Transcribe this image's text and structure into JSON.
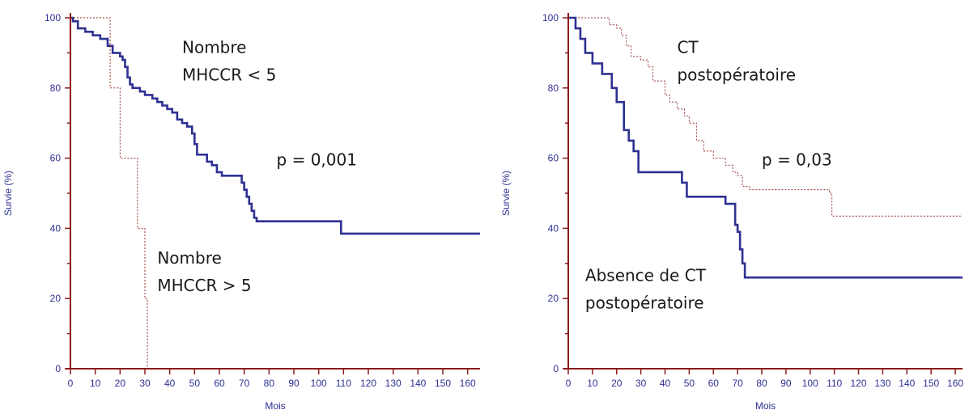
{
  "chart_data": [
    {
      "type": "line",
      "subtype": "kaplan-meier",
      "title": "",
      "xlabel": "Mois",
      "ylabel": "Survie (%)",
      "xlim": [
        0,
        165
      ],
      "ylim": [
        0,
        100
      ],
      "xticks": [
        0,
        10,
        20,
        30,
        40,
        50,
        60,
        70,
        80,
        90,
        100,
        110,
        120,
        130,
        140,
        150,
        160
      ],
      "yticks": [
        0,
        20,
        40,
        60,
        80,
        100
      ],
      "grid": false,
      "series": [
        {
          "name": "Nombre MHCCR < 5",
          "color": "#2e3192",
          "style": "solid",
          "x": [
            0,
            1,
            3,
            6,
            9,
            12,
            15,
            17,
            20,
            21,
            22,
            23,
            24,
            25,
            28,
            30,
            33,
            35,
            37,
            39,
            41,
            43,
            45,
            47,
            49,
            50,
            51,
            55,
            57,
            59,
            61,
            64,
            66,
            69,
            70,
            71,
            72,
            73,
            74,
            75,
            108,
            109,
            165
          ],
          "y": [
            100,
            99,
            97,
            96,
            95,
            94,
            92,
            90,
            89,
            88,
            86,
            83,
            81,
            80,
            79,
            78,
            77,
            76,
            75,
            74,
            73,
            71,
            70,
            69,
            67,
            64,
            61,
            59,
            58,
            56,
            55,
            55,
            55,
            53,
            51,
            49,
            47,
            45,
            43,
            42,
            42,
            38.5,
            38.5
          ]
        },
        {
          "name": "Nombre MHCCR > 5",
          "color": "#9b2d2d",
          "style": "dotted",
          "x": [
            0,
            15,
            16,
            19,
            20,
            26,
            27,
            30,
            31
          ],
          "y": [
            100,
            100,
            80,
            80,
            60,
            60,
            40,
            20,
            0
          ]
        }
      ],
      "annotations": [
        {
          "lines": [
            "Nombre",
            "MHCCR < 5"
          ],
          "x": 45,
          "y": 90
        },
        {
          "lines": [
            "p = 0,001"
          ],
          "x": 83,
          "y": 58
        },
        {
          "lines": [
            "Nombre",
            "MHCCR > 5"
          ],
          "x": 35,
          "y": 30
        }
      ]
    },
    {
      "type": "line",
      "subtype": "kaplan-meier",
      "title": "",
      "xlabel": "Mois",
      "ylabel": "Survie (%)",
      "xlim": [
        0,
        163
      ],
      "ylim": [
        0,
        100
      ],
      "xticks": [
        0,
        10,
        20,
        30,
        40,
        50,
        60,
        70,
        80,
        90,
        100,
        110,
        120,
        130,
        140,
        150,
        160
      ],
      "yticks": [
        0,
        20,
        40,
        60,
        80,
        100
      ],
      "grid": false,
      "series": [
        {
          "name": "CT postopératoire",
          "color": "#9b2d2d",
          "style": "dotted",
          "x": [
            0,
            15,
            17,
            20,
            22,
            24,
            26,
            30,
            33,
            35,
            40,
            42,
            45,
            48,
            50,
            53,
            56,
            60,
            65,
            68,
            70,
            72,
            75,
            100,
            108,
            109,
            163
          ],
          "y": [
            100,
            100,
            98,
            97,
            95,
            92,
            89,
            88,
            86,
            82,
            78,
            76,
            74,
            72,
            70,
            65,
            62,
            60,
            58,
            56,
            55,
            52,
            51,
            51,
            50,
            43.5,
            43.5
          ]
        },
        {
          "name": "Absence de CT postopératoire",
          "color": "#2e3192",
          "style": "solid",
          "x": [
            0,
            3,
            5,
            7,
            10,
            14,
            18,
            20,
            23,
            25,
            27,
            29,
            45,
            47,
            49,
            62,
            65,
            69,
            70,
            71,
            72,
            73,
            163
          ],
          "y": [
            100,
            97,
            94,
            90,
            87,
            84,
            80,
            76,
            68,
            65,
            62,
            56,
            56,
            53,
            49,
            49,
            47,
            41,
            39,
            34,
            30,
            26,
            26
          ]
        }
      ],
      "annotations": [
        {
          "lines": [
            "CT",
            "postopératoire"
          ],
          "x": 45,
          "y": 90
        },
        {
          "lines": [
            "p = 0,03"
          ],
          "x": 80,
          "y": 58
        },
        {
          "lines": [
            "Absence de CT",
            "postopératoire"
          ],
          "x": 7,
          "y": 25
        }
      ]
    }
  ]
}
